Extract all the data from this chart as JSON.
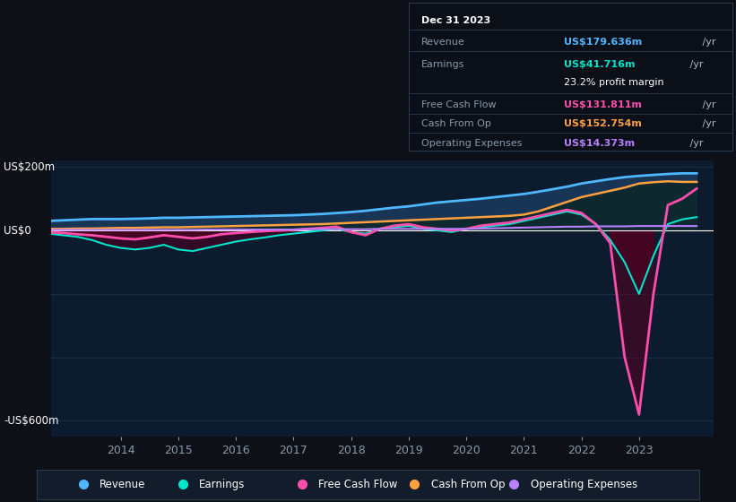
{
  "background_color": "#0d1117",
  "chart_bg": "#0d1b2e",
  "grid_color": "#1e3050",
  "zero_line_color": "#ffffff",
  "ylabel_200": "US$200m",
  "ylabel_0": "US$0",
  "ylabel_neg600": "-US$600m",
  "ylim": [
    -650,
    220
  ],
  "yticks": [
    200,
    0,
    -200,
    -400,
    -600
  ],
  "xlim_start": 2012.8,
  "xlim_end": 2024.3,
  "xtick_years": [
    2014,
    2015,
    2016,
    2017,
    2018,
    2019,
    2020,
    2021,
    2022,
    2023
  ],
  "info_box": {
    "date": "Dec 31 2023",
    "revenue_label": "Revenue",
    "revenue_value": "US$179.636m",
    "revenue_color": "#4db8ff",
    "earnings_label": "Earnings",
    "earnings_value": "US$41.716m",
    "earnings_color": "#00e5cc",
    "margin_text": "23.2% profit margin",
    "fcf_label": "Free Cash Flow",
    "fcf_value": "US$131.811m",
    "fcf_color": "#ff4dac",
    "cashop_label": "Cash From Op",
    "cashop_value": "US$152.754m",
    "cashop_color": "#ffa040",
    "opex_label": "Operating Expenses",
    "opex_value": "US$14.373m",
    "opex_color": "#b87fff"
  },
  "legend": [
    {
      "label": "Revenue",
      "color": "#4db8ff"
    },
    {
      "label": "Earnings",
      "color": "#00e5cc"
    },
    {
      "label": "Free Cash Flow",
      "color": "#ff4dac"
    },
    {
      "label": "Cash From Op",
      "color": "#ffa040"
    },
    {
      "label": "Operating Expenses",
      "color": "#b87fff"
    }
  ],
  "series": {
    "years": [
      2012.75,
      2013.0,
      2013.25,
      2013.5,
      2013.75,
      2014.0,
      2014.25,
      2014.5,
      2014.75,
      2015.0,
      2015.25,
      2015.5,
      2015.75,
      2016.0,
      2016.25,
      2016.5,
      2016.75,
      2017.0,
      2017.25,
      2017.5,
      2017.75,
      2018.0,
      2018.25,
      2018.5,
      2018.75,
      2019.0,
      2019.25,
      2019.5,
      2019.75,
      2020.0,
      2020.25,
      2020.5,
      2020.75,
      2021.0,
      2021.25,
      2021.5,
      2021.75,
      2022.0,
      2022.25,
      2022.5,
      2022.75,
      2023.0,
      2023.25,
      2023.5,
      2023.75,
      2024.0
    ],
    "revenue": [
      30,
      32,
      34,
      36,
      36,
      36,
      37,
      38,
      40,
      40,
      41,
      42,
      43,
      44,
      45,
      46,
      47,
      48,
      50,
      52,
      55,
      58,
      62,
      67,
      72,
      76,
      82,
      88,
      92,
      96,
      100,
      105,
      110,
      115,
      122,
      130,
      138,
      148,
      155,
      162,
      168,
      172,
      175,
      178,
      180,
      180
    ],
    "cash_from_op": [
      5,
      5,
      6,
      6,
      7,
      8,
      8,
      9,
      10,
      10,
      11,
      12,
      13,
      14,
      15,
      16,
      17,
      18,
      19,
      20,
      22,
      24,
      26,
      28,
      30,
      32,
      34,
      36,
      38,
      40,
      42,
      44,
      46,
      50,
      60,
      75,
      90,
      105,
      115,
      125,
      135,
      148,
      152,
      155,
      153,
      153
    ],
    "earnings": [
      -10,
      -15,
      -20,
      -30,
      -45,
      -55,
      -60,
      -55,
      -45,
      -60,
      -65,
      -55,
      -45,
      -35,
      -28,
      -22,
      -15,
      -10,
      -5,
      0,
      5,
      -5,
      -10,
      5,
      10,
      15,
      5,
      0,
      -5,
      5,
      10,
      15,
      20,
      30,
      40,
      50,
      60,
      50,
      20,
      -30,
      -100,
      -200,
      -80,
      20,
      35,
      42
    ],
    "free_cash_flow": [
      -5,
      -8,
      -12,
      -15,
      -20,
      -25,
      -28,
      -22,
      -15,
      -20,
      -25,
      -20,
      -12,
      -8,
      -5,
      -2,
      0,
      2,
      5,
      8,
      12,
      -5,
      -15,
      5,
      15,
      20,
      10,
      5,
      0,
      5,
      15,
      20,
      25,
      35,
      45,
      55,
      65,
      55,
      20,
      -40,
      -400,
      -580,
      -200,
      80,
      100,
      132
    ],
    "operating_expenses": [
      2,
      2,
      2,
      2,
      2,
      2,
      2,
      2,
      2,
      2,
      2,
      3,
      3,
      3,
      3,
      3,
      3,
      3,
      4,
      4,
      4,
      4,
      4,
      5,
      5,
      5,
      5,
      5,
      5,
      5,
      6,
      7,
      8,
      9,
      10,
      11,
      12,
      12,
      13,
      13,
      13,
      14,
      14,
      14,
      14,
      14
    ]
  }
}
